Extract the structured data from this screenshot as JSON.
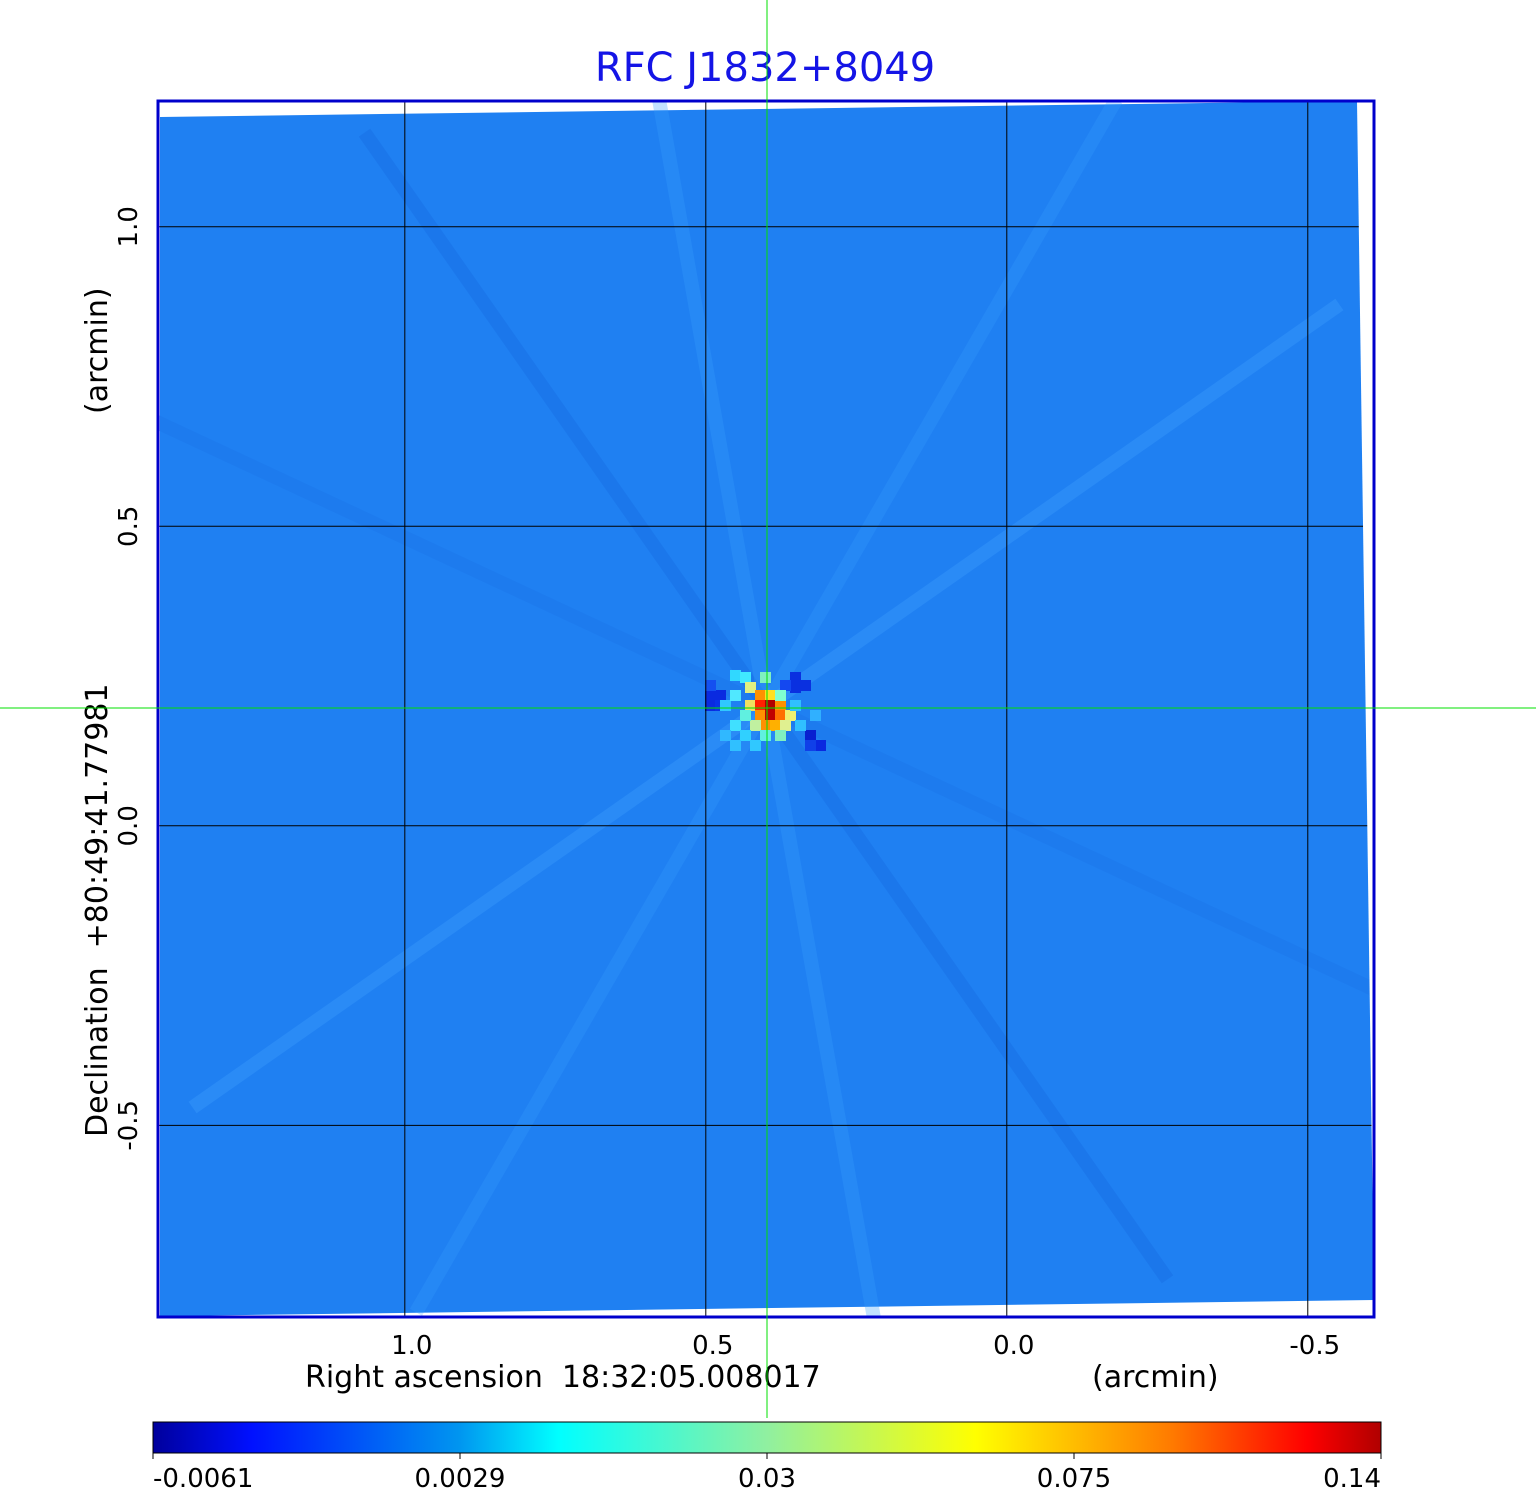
{
  "chart_data": {
    "type": "heatmap",
    "title": "RFC J1832+8049",
    "xlabel": "Right ascension  18:32:05.008017",
    "xunit": "(arcmin)",
    "ylabel": "Declination  +80:49:41.77981",
    "yunit": "(arcmin)",
    "x_ticks": [
      "1.0",
      "0.5",
      "0.0",
      "-0.5"
    ],
    "y_ticks": [
      "1.0",
      "0.5",
      "0.0",
      "-0.5"
    ],
    "xlim": [
      1.41,
      -0.61
    ],
    "ylim": [
      -0.82,
      1.21
    ],
    "grid": true,
    "colormap": "jet",
    "colorbar": {
      "ticks": [
        "-0.0061",
        "0.0029",
        "0.03",
        "0.075",
        "0.14"
      ],
      "range": [
        -0.0061,
        0.14
      ],
      "placement": "bottom"
    },
    "crosshair": {
      "x": 0.4,
      "y": 0.2,
      "color": "#00e000"
    },
    "colors": {
      "title": "#1414e6",
      "frame": "#0000cc",
      "background_map": "#1f80f2"
    }
  }
}
